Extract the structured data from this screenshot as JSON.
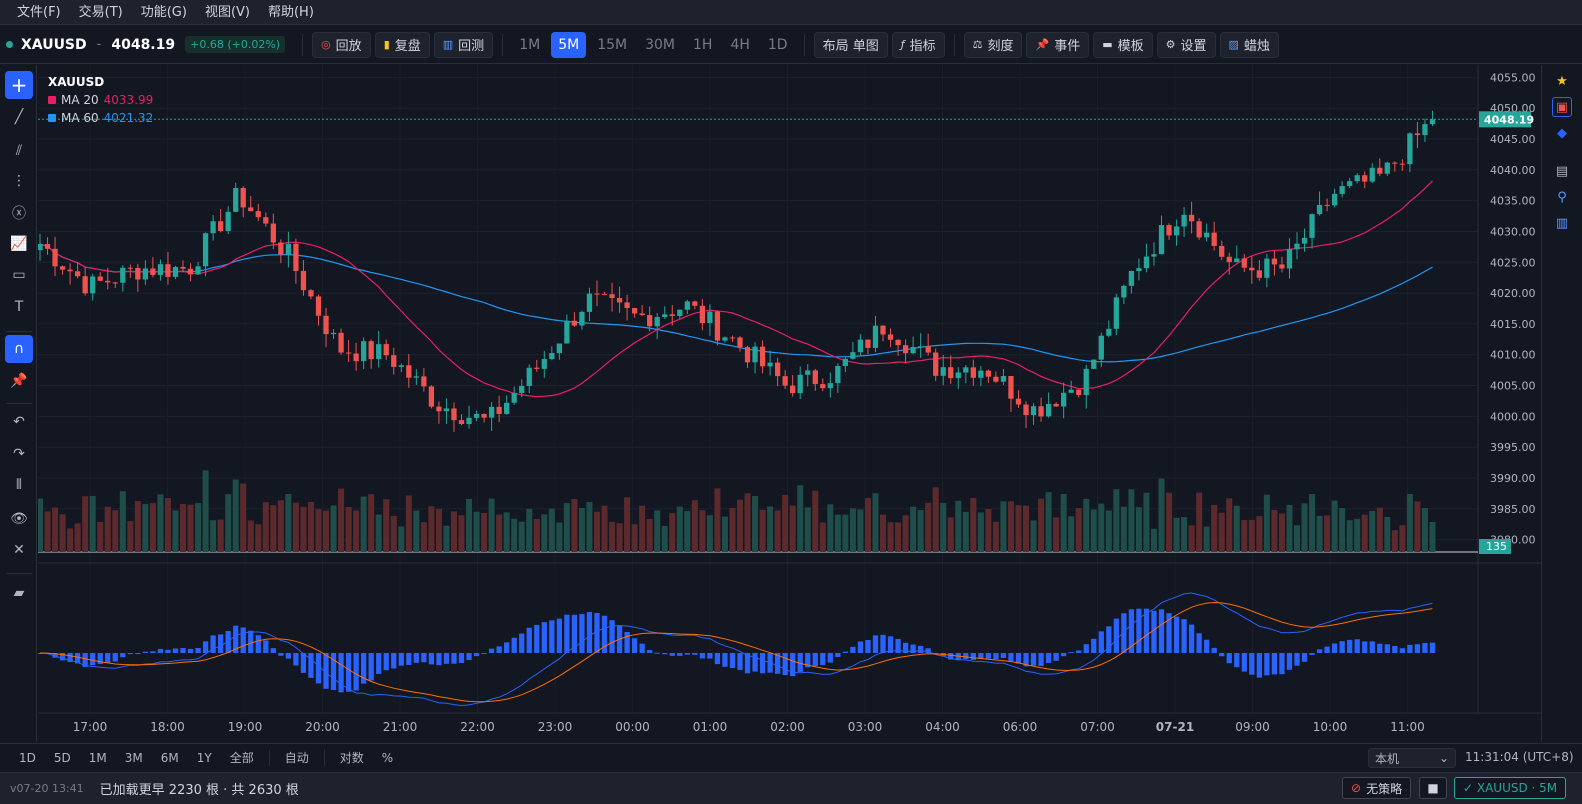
{
  "menu": [
    "文件(F)",
    "交易(T)",
    "功能(G)",
    "视图(V)",
    "帮助(H)"
  ],
  "toolbar": {
    "symbol": "XAUUSD",
    "dash": "-",
    "price": "4048.19",
    "change": "+0.68 (+0.02%)",
    "btn_replay": "回放",
    "btn_review": "复盘",
    "btn_backtest": "回测",
    "timeframes": [
      "1M",
      "5M",
      "15M",
      "30M",
      "1H",
      "4H",
      "1D"
    ],
    "active_timeframe": "5M",
    "btn_layout": "布局 单图",
    "btn_indicators": "指标",
    "btn_scale": "刻度",
    "btn_events": "事件",
    "btn_template": "模板",
    "btn_settings": "设置",
    "btn_candles": "蜡烛"
  },
  "legend": {
    "symbol": "XAUUSD",
    "ma20_label": "MA 20",
    "ma20_value": "4033.99",
    "ma60_label": "MA 60",
    "ma60_value": "4021.32"
  },
  "price_axis": [
    "4055.00",
    "4050.00",
    "4045.00",
    "4040.00",
    "4035.00",
    "4030.00",
    "4025.00",
    "4020.00",
    "4015.00",
    "4010.00",
    "4005.00",
    "4000.00",
    "3995.00",
    "3990.00",
    "3985.00",
    "3980.00"
  ],
  "price_badge": "4048.19",
  "volume_badge": "135",
  "time_axis": [
    "17:00",
    "18:00",
    "19:00",
    "20:00",
    "21:00",
    "22:00",
    "23:00",
    "00:00",
    "01:00",
    "02:00",
    "03:00",
    "04:00",
    "06:00",
    "07:00",
    "07-21",
    "09:00",
    "10:00",
    "11:00"
  ],
  "bottombar": {
    "ranges": [
      "1D",
      "5D",
      "1M",
      "3M",
      "6M",
      "1Y",
      "全部"
    ],
    "auto": "自动",
    "log": "对数",
    "percent": "%",
    "select_value": "本机",
    "clock": "11:31:04 (UTC+8)"
  },
  "statusbar": {
    "version": "v07-20 13:41",
    "loaded": "已加载更早 2230 根 · 共 2630 根",
    "no_strategy": "无策略",
    "current": "✓ XAUUSD · 5M"
  },
  "colors": {
    "up": "#26a69a",
    "down": "#ef5350",
    "ma20": "#e91e63",
    "ma60": "#2196f3",
    "accent": "#2962ff"
  },
  "chart_data": {
    "type": "candlestick",
    "symbol": "XAUUSD",
    "interval": "5M",
    "ylim": [
      3978,
      4057
    ],
    "last_price": 4048.19,
    "key_closes": [
      {
        "t": "16:35",
        "close": 4028
      },
      {
        "t": "17:00",
        "close": 4021
      },
      {
        "t": "18:00",
        "close": 4024
      },
      {
        "t": "19:00",
        "close": 4024
      },
      {
        "t": "19:30",
        "close": 4036
      },
      {
        "t": "20:00",
        "close": 4026
      },
      {
        "t": "20:30",
        "close": 4011
      },
      {
        "t": "21:00",
        "close": 4010
      },
      {
        "t": "22:00",
        "close": 4002
      },
      {
        "t": "22:20",
        "close": 3999
      },
      {
        "t": "23:00",
        "close": 4008
      },
      {
        "t": "23:05",
        "close": 4019
      },
      {
        "t": "00:00",
        "close": 4016
      },
      {
        "t": "00:15",
        "close": 4018
      },
      {
        "t": "01:00",
        "close": 4012
      },
      {
        "t": "02:00",
        "close": 4005
      },
      {
        "t": "03:00",
        "close": 4007
      },
      {
        "t": "03:30",
        "close": 4015
      },
      {
        "t": "04:00",
        "close": 4008
      },
      {
        "t": "06:00",
        "close": 4008
      },
      {
        "t": "07:00",
        "close": 4001
      },
      {
        "t": "07-21",
        "close": 4006
      },
      {
        "t": "08:30",
        "close": 4024
      },
      {
        "t": "09:00",
        "close": 4034
      },
      {
        "t": "09:30",
        "close": 4024
      },
      {
        "t": "10:00",
        "close": 4024
      },
      {
        "t": "10:30",
        "close": 4036
      },
      {
        "t": "11:00",
        "close": 4039
      },
      {
        "t": "11:30",
        "close": 4048.19
      }
    ],
    "ma20_last": 4033.99,
    "ma60_last": 4021.32,
    "volume_last": 135
  }
}
